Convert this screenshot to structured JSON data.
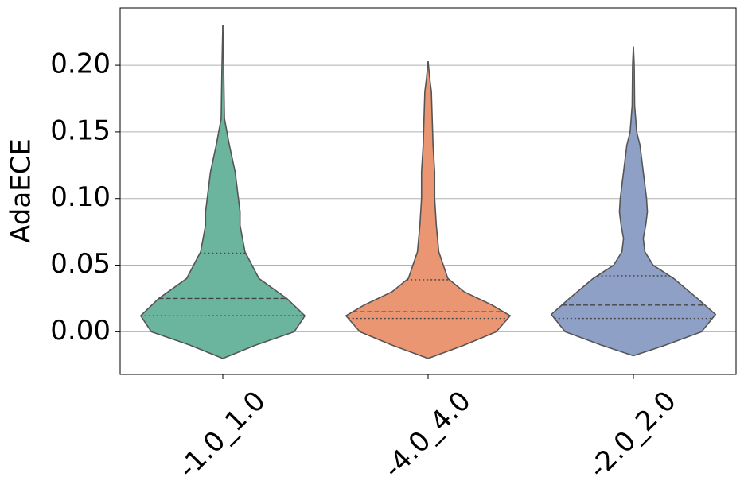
{
  "chart_data": {
    "type": "violin",
    "ylabel": "AdaECE",
    "categories": [
      "-1.0_1.0",
      "-4.0_4.0",
      "-2.0_2.0"
    ],
    "ylim": [
      -0.032,
      0.243
    ],
    "yticks": [
      {
        "value": 0,
        "label": "0.00"
      },
      {
        "value": 0.05,
        "label": "0.05"
      },
      {
        "value": 0.1,
        "label": "0.10"
      },
      {
        "value": 0.15,
        "label": "0.15"
      },
      {
        "value": 0.2,
        "label": "0.20"
      }
    ],
    "grid": true,
    "series": [
      {
        "color": "#6bb59e",
        "q1": 0.012,
        "median": 0.025,
        "q3": 0.059,
        "density_y": [
          -0.02,
          -0.01,
          0,
          0.012,
          0.025,
          0.04,
          0.06,
          0.08,
          0.09,
          0.1,
          0.12,
          0.14,
          0.15,
          0.16,
          0.18,
          0.2,
          0.23
        ],
        "density_width": [
          0,
          0.4,
          0.87,
          1,
          0.78,
          0.44,
          0.27,
          0.21,
          0.21,
          0.19,
          0.15,
          0.08,
          0.05,
          0.02,
          0.015,
          0.01,
          0
        ]
      },
      {
        "color": "#ea9672",
        "q1": 0.01,
        "median": 0.015,
        "q3": 0.039,
        "density_y": [
          -0.02,
          -0.01,
          0,
          0.012,
          0.02,
          0.03,
          0.04,
          0.06,
          0.08,
          0.1,
          0.12,
          0.14,
          0.16,
          0.18,
          0.19,
          0.203
        ],
        "density_width": [
          0,
          0.44,
          0.83,
          1,
          0.78,
          0.44,
          0.24,
          0.13,
          0.1,
          0.08,
          0.08,
          0.06,
          0.05,
          0.04,
          0.02,
          0
        ]
      },
      {
        "color": "#8fa0c7",
        "q1": 0.01,
        "median": 0.02,
        "q3": 0.042,
        "density_y": [
          -0.018,
          -0.01,
          0,
          0.013,
          0.025,
          0.04,
          0.05,
          0.06,
          0.07,
          0.08,
          0.09,
          0.1,
          0.12,
          0.14,
          0.15,
          0.17,
          0.2,
          0.214
        ],
        "density_width": [
          0,
          0.39,
          0.83,
          1,
          0.78,
          0.49,
          0.24,
          0.14,
          0.12,
          0.15,
          0.17,
          0.16,
          0.12,
          0.08,
          0.04,
          0.015,
          0.01,
          0
        ]
      }
    ]
  }
}
